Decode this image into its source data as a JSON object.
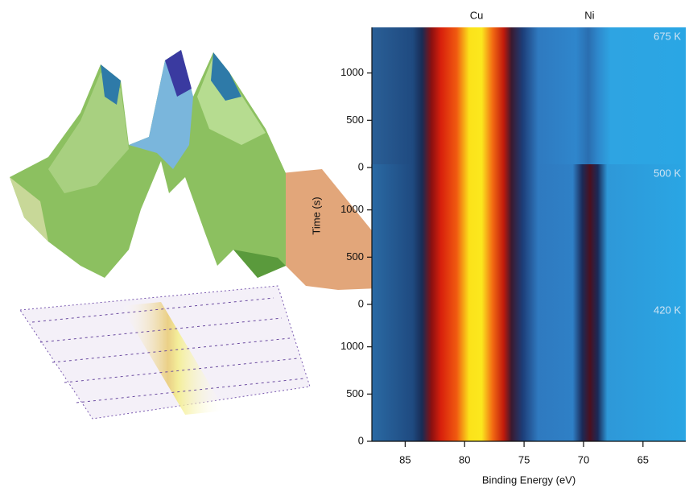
{
  "chart_data": {
    "type": "heatmap",
    "xlabel": "Binding Energy (eV)",
    "ylabel": "Time (s)",
    "xlim": [
      87.8,
      61.4
    ],
    "xticks": [
      85,
      80,
      75,
      70,
      65
    ],
    "ylim": [
      0,
      1500
    ],
    "yticks": [
      0,
      500,
      1000
    ],
    "panels": [
      {
        "label": "675 K"
      },
      {
        "label": "500 K"
      },
      {
        "label": "420 K"
      }
    ],
    "peaks": [
      {
        "label": "Cu",
        "value": 79
      },
      {
        "label": "Ni",
        "value": 69.5
      }
    ]
  }
}
